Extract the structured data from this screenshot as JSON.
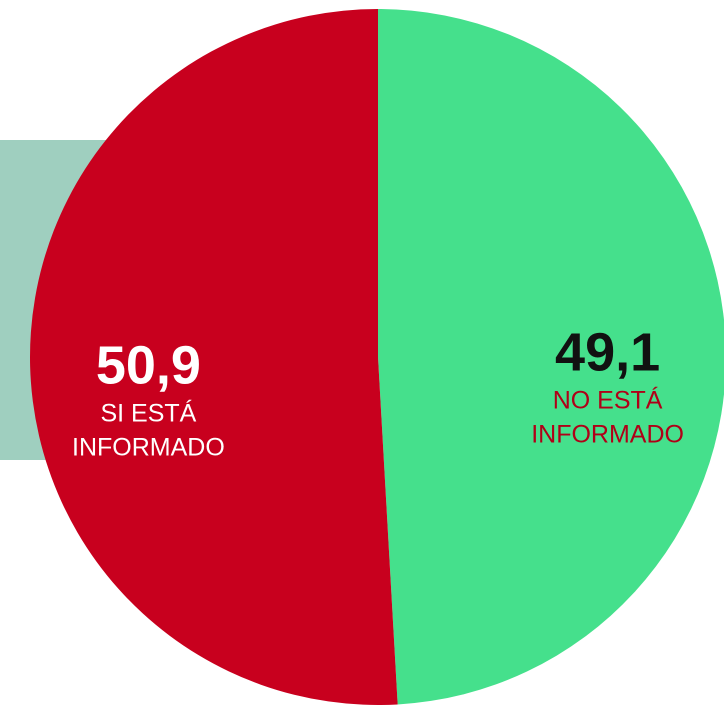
{
  "chart_data": {
    "type": "pie",
    "categories": [
      "NO ESTÁ INFORMADO",
      "SI ESTÁ INFORMADO"
    ],
    "values": [
      49.1,
      50.9
    ],
    "value_labels": [
      "49,1",
      "50,9"
    ],
    "colors": [
      "#45e08c",
      "#c8001e"
    ],
    "label_colors": [
      "#b00018",
      "#ffffff"
    ],
    "value_label_colors": [
      "#111111",
      "#ffffff"
    ]
  }
}
